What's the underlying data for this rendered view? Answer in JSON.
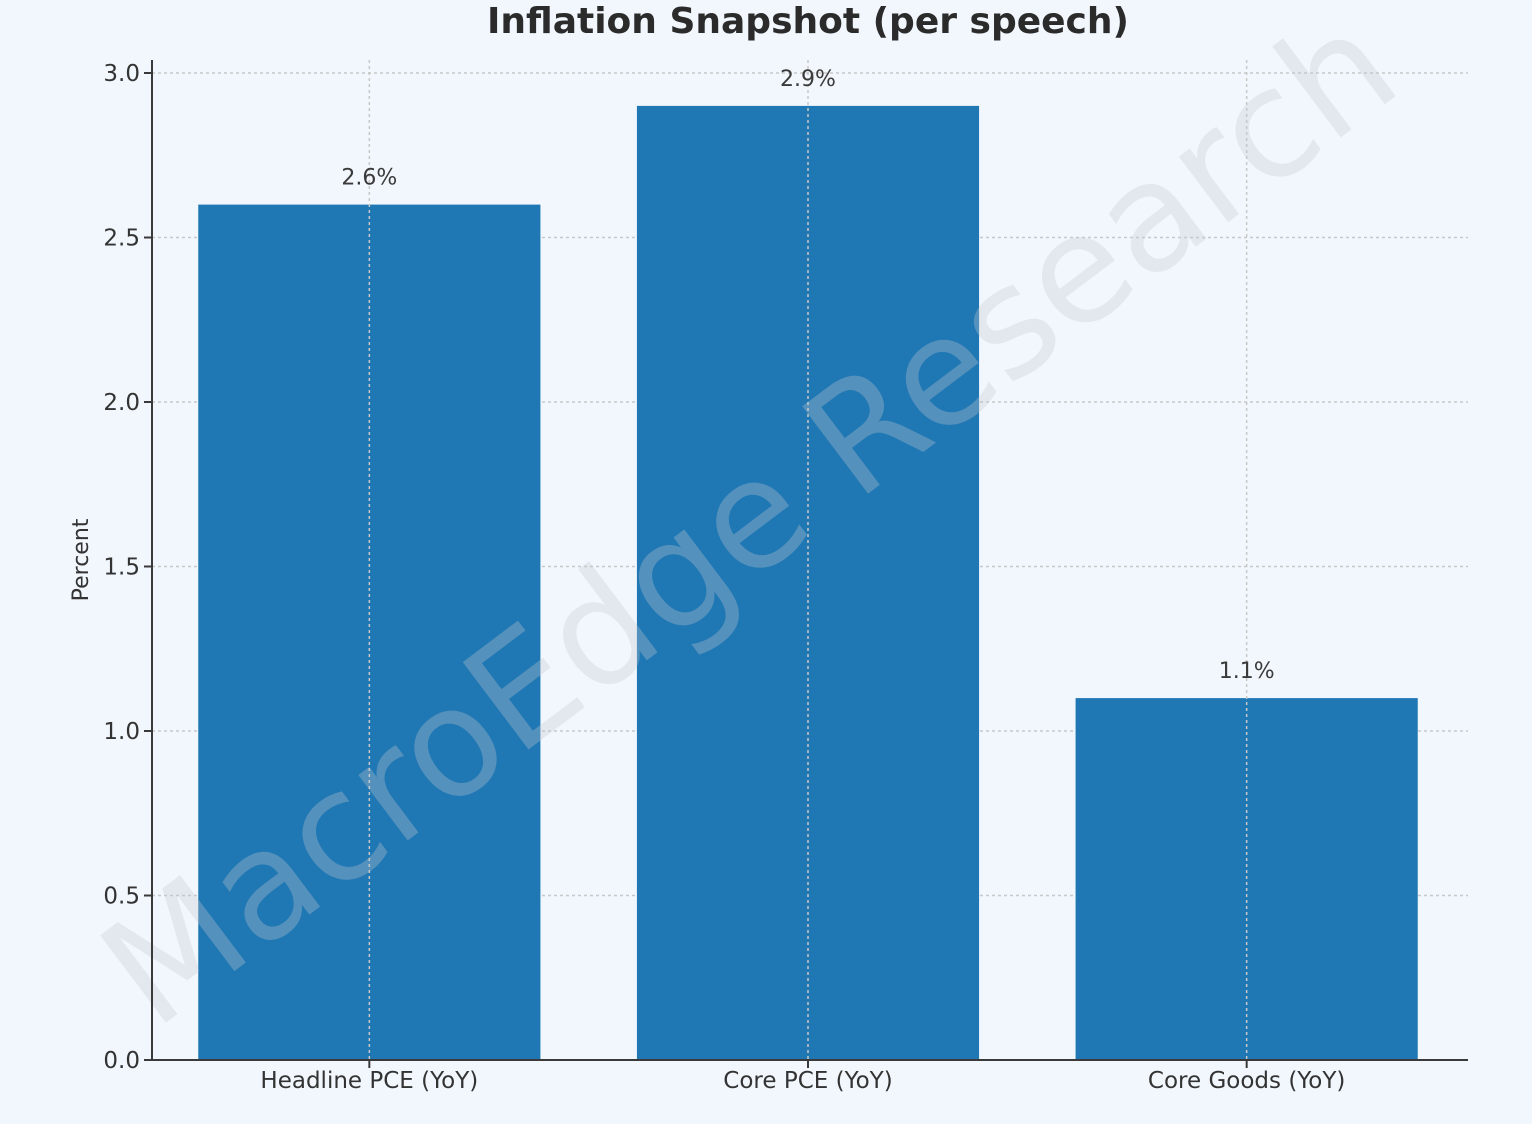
{
  "chart_data": {
    "type": "bar",
    "title": "Inflation Snapshot (per speech)",
    "xlabel": "",
    "ylabel": "Percent",
    "categories": [
      "Headline PCE (YoY)",
      "Core PCE (YoY)",
      "Core Goods (YoY)"
    ],
    "values": [
      2.6,
      2.9,
      1.1
    ],
    "data_labels": [
      "2.6%",
      "2.9%",
      "1.1%"
    ],
    "ylim": [
      0,
      3.0
    ],
    "yticks": [
      0.0,
      0.5,
      1.0,
      1.5,
      2.0,
      2.5,
      3.0
    ],
    "ytick_labels": [
      "0.0",
      "0.5",
      "1.0",
      "1.5",
      "2.0",
      "2.5",
      "3.0"
    ],
    "grid": true,
    "bar_color": "#1f77b4"
  },
  "watermark": "MacroEdge Research"
}
